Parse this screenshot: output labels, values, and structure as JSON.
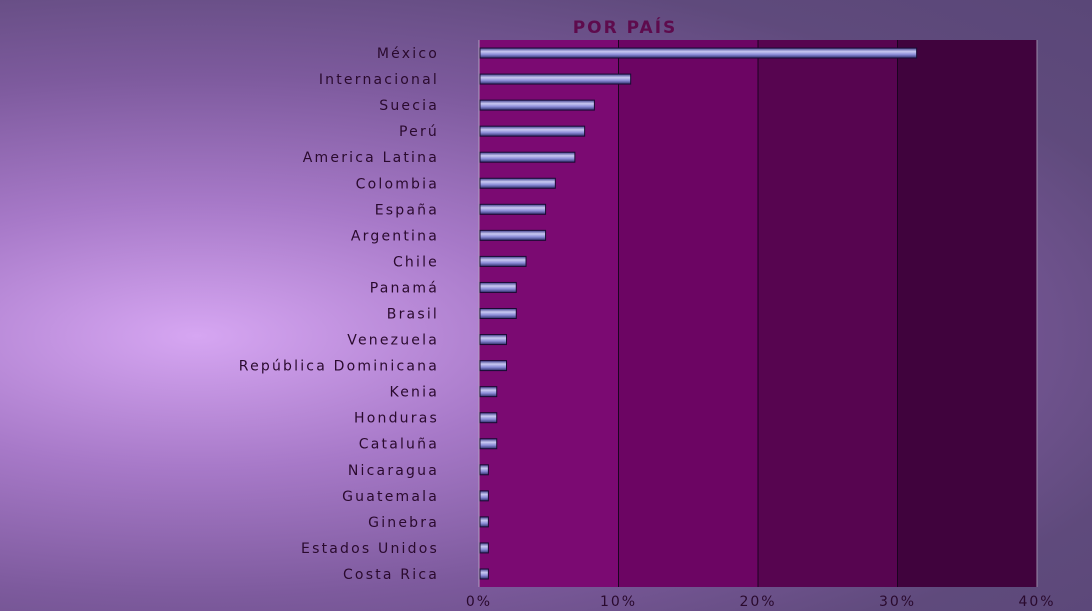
{
  "chart_data": {
    "type": "bar",
    "orientation": "horizontal",
    "title": "POR PAÍS",
    "xlabel": "",
    "ylabel": "",
    "xlim": [
      0,
      40
    ],
    "xticks": [
      "0%",
      "10%",
      "20%",
      "30%",
      "40%"
    ],
    "grid": "vertical",
    "legend": "none",
    "categories": [
      "México",
      "Internacional",
      "Suecia",
      "Perú",
      "America Latina",
      "Colombia",
      "España",
      "Argentina",
      "Chile",
      "Panamá",
      "Brasil",
      "Venezuela",
      "República Dominicana",
      "Kenia",
      "Honduras",
      "Cataluña",
      "Nicaragua",
      "Guatemala",
      "Ginebra",
      "Estados Unidos",
      "Costa Rica"
    ],
    "values": [
      31.3,
      10.8,
      8.2,
      7.5,
      6.8,
      5.4,
      4.7,
      4.7,
      3.3,
      2.6,
      2.6,
      1.9,
      1.9,
      1.2,
      1.2,
      1.2,
      0.6,
      0.6,
      0.6,
      0.6,
      0.6
    ]
  },
  "colors": {
    "band_1": "#7b0a72",
    "band_2": "#6c0563",
    "band_3": "#570550",
    "band_4": "#40033d",
    "bar_fill": "#8b8cd8",
    "bar_stroke": "#1a0a33",
    "gridline": "#1b0420",
    "axis": "#b0a0c0"
  }
}
